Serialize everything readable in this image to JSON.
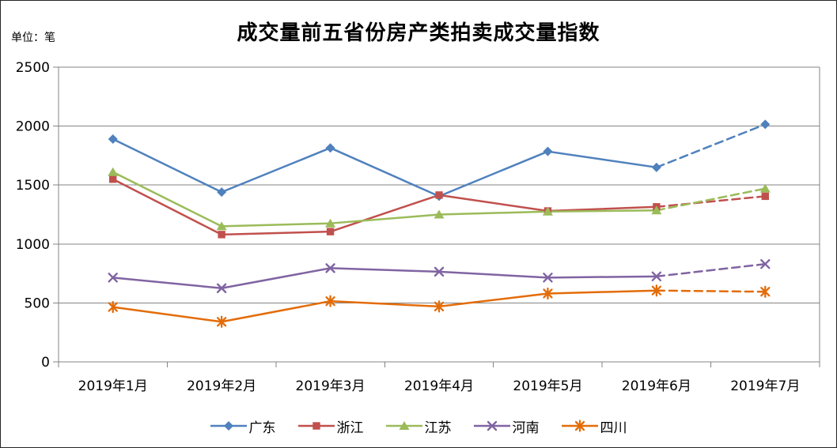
{
  "chart_data": {
    "type": "line",
    "title": "成交量前五省份房产类拍卖成交量指数",
    "unit_label": "单位：笔",
    "categories": [
      "2019年1月",
      "2019年2月",
      "2019年3月",
      "2019年4月",
      "2019年5月",
      "2019年6月",
      "2019年7月"
    ],
    "series": [
      {
        "name": "广东",
        "color": "#4F81BD",
        "marker": "diamond",
        "values": [
          1890,
          1440,
          1815,
          1405,
          1785,
          1650,
          2015
        ]
      },
      {
        "name": "浙江",
        "color": "#C0504D",
        "marker": "square",
        "values": [
          1550,
          1080,
          1105,
          1415,
          1280,
          1315,
          1405
        ]
      },
      {
        "name": "江苏",
        "color": "#9BBB59",
        "marker": "triangle",
        "values": [
          1610,
          1150,
          1175,
          1250,
          1275,
          1285,
          1470
        ]
      },
      {
        "name": "河南",
        "color": "#8064A2",
        "marker": "x",
        "values": [
          715,
          625,
          795,
          765,
          715,
          725,
          830
        ]
      },
      {
        "name": "四川",
        "color": "#E36C09",
        "marker": "asterisk",
        "values": [
          465,
          340,
          515,
          470,
          580,
          605,
          595
        ]
      }
    ],
    "ylim": [
      0,
      2500
    ],
    "yticks": [
      0,
      500,
      1000,
      1500,
      2000,
      2500
    ],
    "grid": "horizontal",
    "legend_position": "bottom",
    "last_segment_dashed": true,
    "xlabel": "",
    "ylabel": "单位：笔",
    "axis_color": "#848484",
    "text_color": "#000000"
  }
}
